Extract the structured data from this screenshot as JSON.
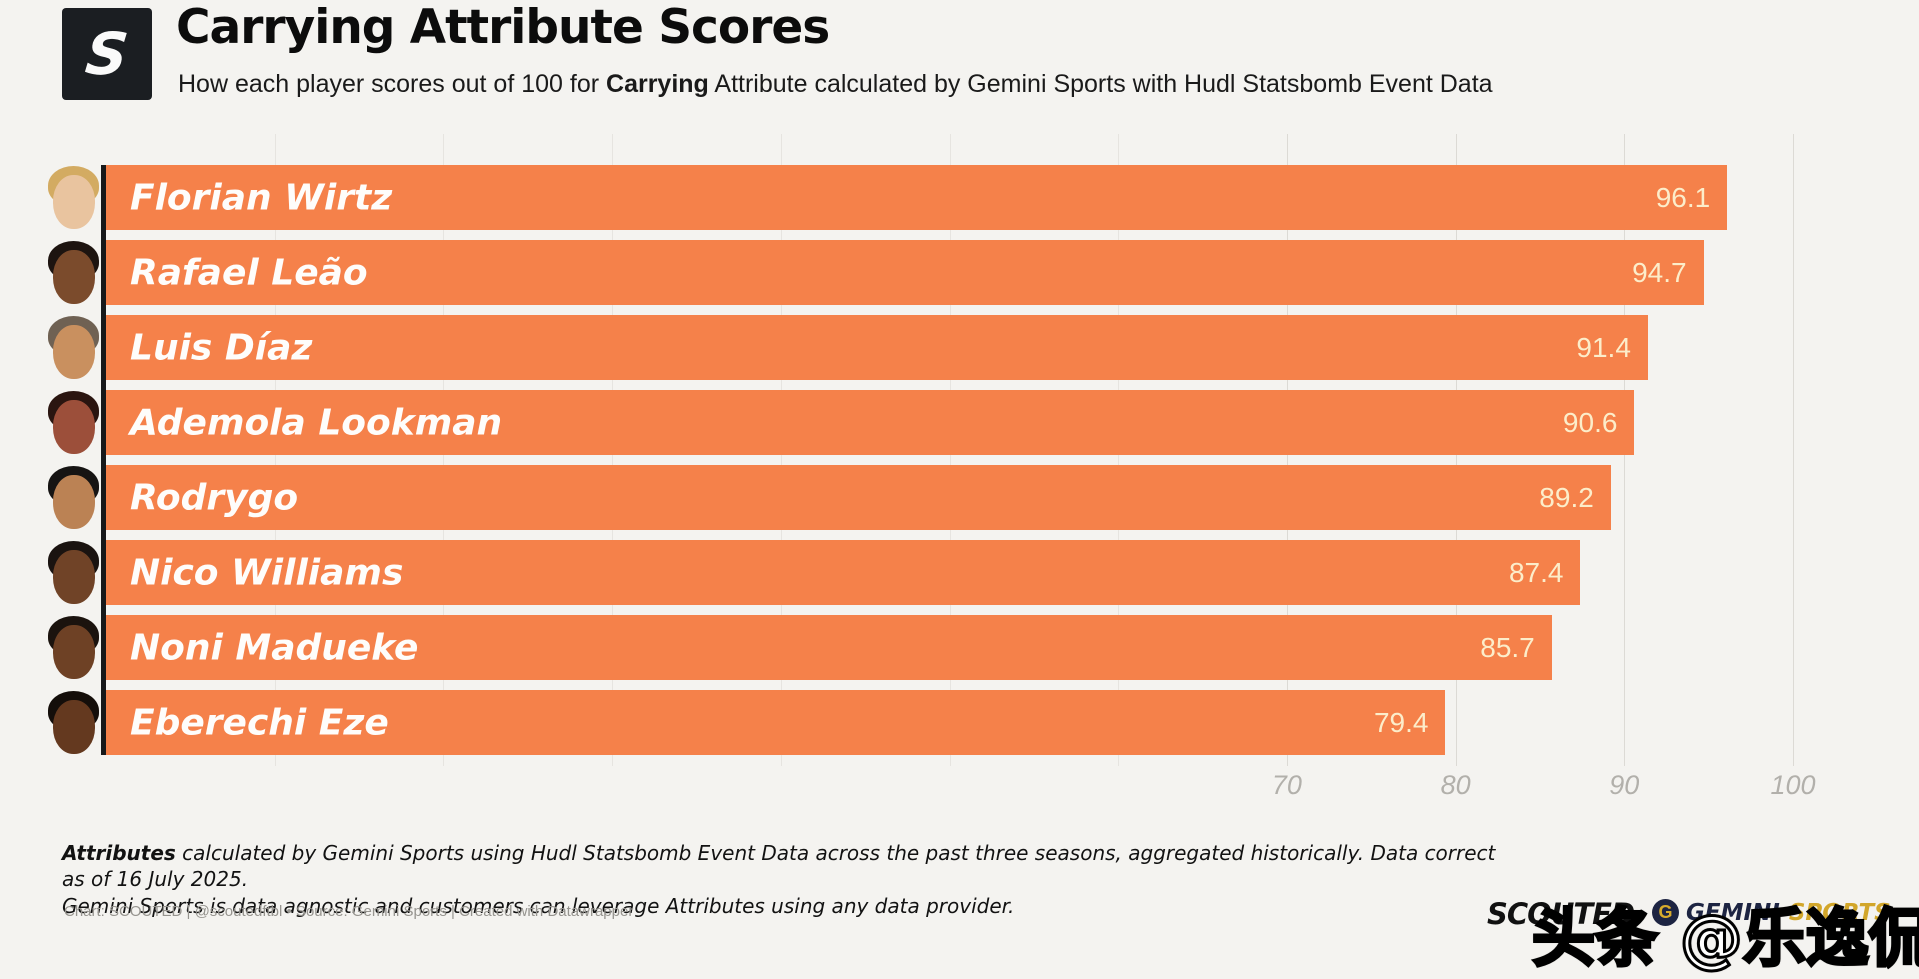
{
  "header": {
    "logo_letter": "S",
    "title": "Carrying Attribute Scores",
    "subtitle_prefix": "How each player scores out of 100 for ",
    "subtitle_bold": "Carrying",
    "subtitle_suffix": " Attribute calculated by Gemini Sports with Hudl Statsbomb Event Data"
  },
  "chart_data": {
    "type": "bar",
    "orientation": "horizontal",
    "title": "Carrying Attribute Scores",
    "categories": [
      "Florian Wirtz",
      "Rafael Leão",
      "Luis Díaz",
      "Ademola Lookman",
      "Rodrygo",
      "Nico Williams",
      "Noni Madueke",
      "Eberechi Eze"
    ],
    "values": [
      96.1,
      94.7,
      91.4,
      90.6,
      89.2,
      87.4,
      85.7,
      79.4
    ],
    "xlim": [
      0,
      100
    ],
    "x_tick_labels": [
      70,
      80,
      90,
      100
    ],
    "gridline_step": 10,
    "grid": true,
    "legend": "none",
    "bar_color": "#f5814a",
    "value_label_color": "#fcedca",
    "name_label_color": "#fefdfb",
    "axis_line_color": "#17181a",
    "avatars": [
      {
        "skin": "#e9c49f",
        "hair": "#d3ab62"
      },
      {
        "skin": "#7b4b2c",
        "hair": "#1d1410"
      },
      {
        "skin": "#c9905f",
        "hair": "#6f6153"
      },
      {
        "skin": "#9c4f3a",
        "hair": "#2a1510"
      },
      {
        "skin": "#bb8254",
        "hair": "#161413"
      },
      {
        "skin": "#704327",
        "hair": "#1a1310"
      },
      {
        "skin": "#6e4125",
        "hair": "#1b130e"
      },
      {
        "skin": "#64391f",
        "hair": "#140e0a"
      }
    ]
  },
  "footer": {
    "note_bold": "Attributes",
    "note_line1_rest": " calculated by Gemini Sports using Hudl Statsbomb Event Data across the past three seasons, aggregated historically. Data correct as of 16 July 2025.",
    "note_line2": "Gemini Sports is data agnostic and customers can leverage Attributes using any data provider.",
    "attribution": "Chart: SCOUTED | @scoutedftbl • Source: Gemini Sports | Created with Datawrapper",
    "scouted_wordmark": "SCOUTED",
    "gemini_g": "G",
    "gemini_name": "GEMINI",
    "gemini_sports": "SPORTS",
    "watermark": "头条 @乐逸侃球"
  }
}
